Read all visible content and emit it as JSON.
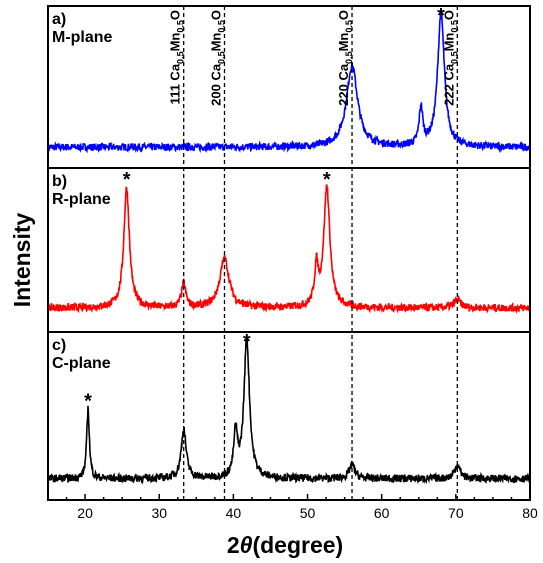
{
  "chart_data": {
    "type": "line",
    "xlabel": "2θ(degree)",
    "ylabel": "Intensity",
    "xlim": [
      15,
      80
    ],
    "xticks": [
      20,
      30,
      40,
      50,
      60,
      70,
      80
    ],
    "grid": false,
    "reference_lines": [
      {
        "x": 33.3,
        "label": "111 Ca0.5Mn0.5O"
      },
      {
        "x": 38.8,
        "label": "200 Ca0.5Mn0.5O"
      },
      {
        "x": 56.0,
        "label": "220 Ca0.5Mn0.5O"
      },
      {
        "x": 70.2,
        "label": "222 Ca0.5Mn0.5O"
      }
    ],
    "panels": [
      {
        "label": "a)",
        "name": "M-plane",
        "color": "#0000ff",
        "baseline": 0.1,
        "noise": 0.05,
        "peaks": [
          {
            "x": 56.0,
            "height": 0.55,
            "width": 0.9
          },
          {
            "x": 65.3,
            "height": 0.25,
            "width": 0.3
          },
          {
            "x": 68.0,
            "height": 0.9,
            "width": 0.55
          }
        ],
        "star_peaks": [
          68.0
        ]
      },
      {
        "label": "b)",
        "name": "R-plane",
        "color": "#ff0000",
        "baseline": 0.12,
        "noise": 0.05,
        "peaks": [
          {
            "x": 25.6,
            "height": 0.8,
            "width": 0.45
          },
          {
            "x": 33.3,
            "height": 0.16,
            "width": 0.35
          },
          {
            "x": 38.8,
            "height": 0.33,
            "width": 0.75
          },
          {
            "x": 51.2,
            "height": 0.25,
            "width": 0.3
          },
          {
            "x": 52.6,
            "height": 0.8,
            "width": 0.5
          },
          {
            "x": 70.2,
            "height": 0.05,
            "width": 0.6
          }
        ],
        "star_peaks": [
          25.6,
          52.6
        ]
      },
      {
        "label": "c)",
        "name": "C-plane",
        "color": "#000000",
        "baseline": 0.1,
        "noise": 0.05,
        "peaks": [
          {
            "x": 20.4,
            "height": 0.45,
            "width": 0.22
          },
          {
            "x": 33.3,
            "height": 0.32,
            "width": 0.4
          },
          {
            "x": 40.3,
            "height": 0.28,
            "width": 0.3
          },
          {
            "x": 41.8,
            "height": 0.9,
            "width": 0.45
          },
          {
            "x": 56.0,
            "height": 0.09,
            "width": 0.45
          },
          {
            "x": 70.2,
            "height": 0.09,
            "width": 0.45
          }
        ],
        "star_peaks": [
          20.4,
          41.8
        ]
      }
    ]
  },
  "ref_text": {
    "compound": "Ca",
    "sub": "0.5",
    "mn": "Mn",
    "o": "O"
  },
  "star_symbol": "*",
  "axis_title": {
    "two": "2",
    "theta": "θ",
    "rest": "(degree)"
  }
}
